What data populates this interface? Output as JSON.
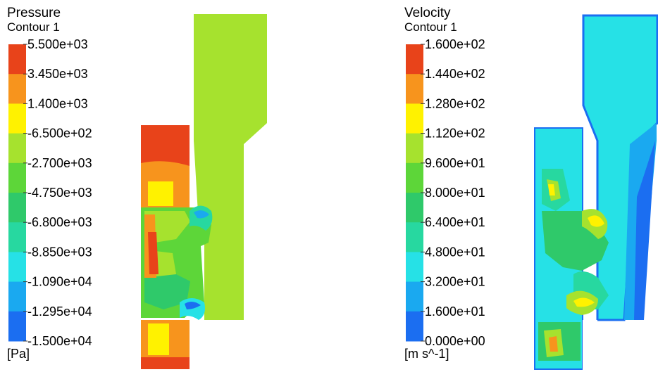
{
  "panels": [
    {
      "id": "pressure",
      "title": "Pressure",
      "subtitle": "Contour 1",
      "units": "[Pa]",
      "tick_labels": [
        "5.500e+03",
        "3.450e+03",
        "1.400e+03",
        "-6.500e+02",
        "-2.700e+03",
        "-4.750e+03",
        "-6.800e+03",
        "-8.850e+03",
        "-1.090e+04",
        "-1.295e+04",
        "-1.500e+04"
      ],
      "bands_top_to_bottom": [
        "#e8431a",
        "#f7941d",
        "#fff200",
        "#a6e22e",
        "#5dd639",
        "#2fc96a",
        "#27d8a0",
        "#26e1e6",
        "#1aa9f0",
        "#1b6ef1"
      ]
    },
    {
      "id": "velocity",
      "title": "Velocity",
      "subtitle": "Contour 1",
      "units": "[m s^-1]",
      "tick_labels": [
        "1.600e+02",
        "1.440e+02",
        "1.280e+02",
        "1.120e+02",
        "9.600e+01",
        "8.000e+01",
        "6.400e+01",
        "4.800e+01",
        "3.200e+01",
        "1.600e+01",
        "0.000e+00"
      ],
      "bands_top_to_bottom": [
        "#e8431a",
        "#f7941d",
        "#fff200",
        "#a6e22e",
        "#5dd639",
        "#2fc96a",
        "#27d8a0",
        "#26e1e6",
        "#1aa9f0",
        "#1b6ef1"
      ]
    }
  ]
}
